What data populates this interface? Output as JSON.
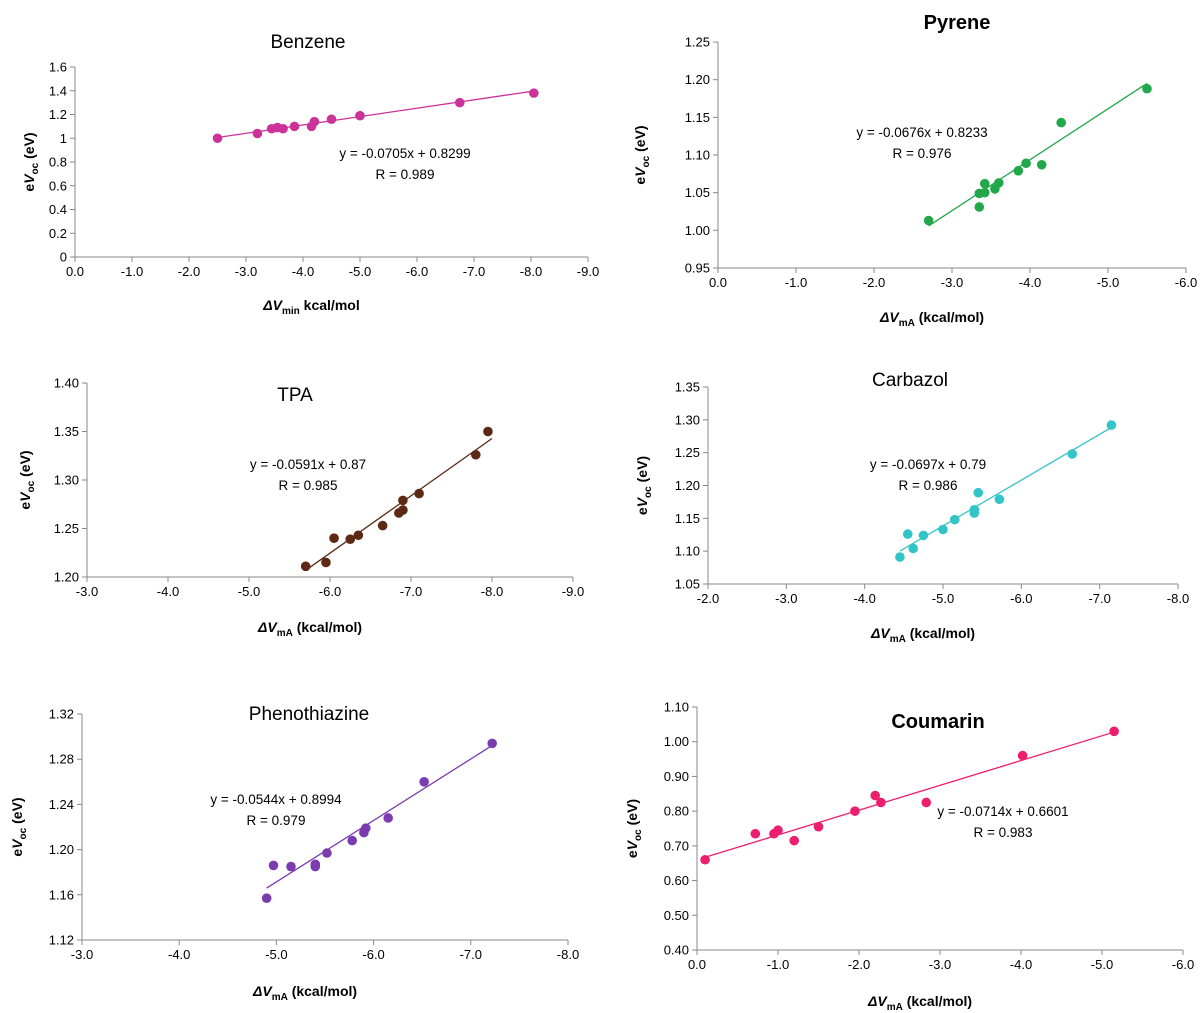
{
  "chart_data": [
    {
      "type": "scatter",
      "title": "Benzene",
      "xlabel": "ΔVmin kcal/mol",
      "ylabel": "eVoc (eV)",
      "xlim": [
        0,
        -9
      ],
      "ylim": [
        0,
        1.6
      ],
      "xticks": [
        "0.0",
        "-1.0",
        "-2.0",
        "-3.0",
        "-4.0",
        "-5.0",
        "-6.0",
        "-7.0",
        "-8.0",
        "-9.0"
      ],
      "yticks": [
        "0",
        "0.2",
        "0.4",
        "0.6",
        "0.8",
        "1",
        "1.2",
        "1.4",
        "1.6"
      ],
      "color": "#cc3399",
      "equation": "y = -0.0705x + 0.8299",
      "r_label": "R = 0.989",
      "fit": {
        "slope": -0.0705,
        "intercept": 0.8299,
        "x_from": -2.5,
        "x_to": -8.05
      },
      "x": [
        -2.5,
        -3.2,
        -3.45,
        -3.55,
        -3.65,
        -3.85,
        -4.15,
        -4.2,
        -4.5,
        -5.0,
        -6.75,
        -8.05
      ],
      "y": [
        1.0,
        1.04,
        1.08,
        1.09,
        1.08,
        1.1,
        1.1,
        1.14,
        1.16,
        1.19,
        1.3,
        1.38
      ]
    },
    {
      "type": "scatter",
      "title": "Pyrene",
      "title_bold": true,
      "xlabel": "ΔVmA (kcal/mol)",
      "ylabel": "eVoc (eV)",
      "xlim": [
        0,
        -6
      ],
      "ylim": [
        0.95,
        1.25
      ],
      "xticks": [
        "0.0",
        "-1.0",
        "-2.0",
        "-3.0",
        "-4.0",
        "-5.0",
        "-6.0"
      ],
      "yticks": [
        "0.95",
        "1.00",
        "1.05",
        "1.10",
        "1.15",
        "1.20",
        "1.25"
      ],
      "color": "#22a84a",
      "equation": "y = -0.0676x + 0.8233",
      "r_label": "R = 0.976",
      "fit": {
        "slope": -0.0676,
        "intercept": 0.8233,
        "x_from": -2.7,
        "x_to": -5.5
      },
      "x": [
        -2.7,
        -3.35,
        -3.35,
        -3.42,
        -3.42,
        -3.55,
        -3.6,
        -3.85,
        -3.95,
        -4.15,
        -4.4,
        -5.5
      ],
      "y": [
        1.013,
        1.031,
        1.049,
        1.05,
        1.062,
        1.055,
        1.063,
        1.079,
        1.089,
        1.087,
        1.143,
        1.188
      ]
    },
    {
      "type": "scatter",
      "title": "TPA",
      "xlabel": "ΔVmA (kcal/mol)",
      "ylabel": "eVoc (eV)",
      "xlim": [
        -3,
        -9
      ],
      "ylim": [
        1.2,
        1.4
      ],
      "xticks": [
        "-3.0",
        "-4.0",
        "-5.0",
        "-6.0",
        "-7.0",
        "-8.0",
        "-9.0"
      ],
      "yticks": [
        "1.20",
        "1.25",
        "1.30",
        "1.35",
        "1.40"
      ],
      "color": "#5c2a14",
      "equation": "y = -0.0591x + 0.87",
      "r_label": "R = 0.985",
      "fit": {
        "slope": -0.0591,
        "intercept": 0.87,
        "x_from": -5.7,
        "x_to": -8.0
      },
      "x": [
        -5.7,
        -5.95,
        -6.05,
        -6.25,
        -6.35,
        -6.65,
        -6.85,
        -6.9,
        -6.9,
        -7.1,
        -7.8,
        -7.95
      ],
      "y": [
        1.211,
        1.215,
        1.24,
        1.239,
        1.243,
        1.253,
        1.266,
        1.269,
        1.279,
        1.286,
        1.326,
        1.35
      ]
    },
    {
      "type": "scatter",
      "title": "Carbazol",
      "xlabel": "ΔVmA (kcal/mol)",
      "ylabel": "eVoc (eV)",
      "xlim": [
        -2,
        -8
      ],
      "ylim": [
        1.05,
        1.35
      ],
      "xticks": [
        "-2.0",
        "-3.0",
        "-4.0",
        "-5.0",
        "-6.0",
        "-7.0",
        "-8.0"
      ],
      "yticks": [
        "1.05",
        "1.10",
        "1.15",
        "1.20",
        "1.25",
        "1.30",
        "1.35"
      ],
      "color": "#33c4c8",
      "equation": "y = -0.0697x + 0.79",
      "r_label": "R = 0.986",
      "fit": {
        "slope": -0.0697,
        "intercept": 0.79,
        "x_from": -4.45,
        "x_to": -7.15
      },
      "x": [
        -4.45,
        -4.55,
        -4.62,
        -4.75,
        -5.0,
        -5.15,
        -5.4,
        -5.4,
        -5.45,
        -5.72,
        -6.65,
        -7.15
      ],
      "y": [
        1.091,
        1.126,
        1.104,
        1.124,
        1.133,
        1.148,
        1.158,
        1.163,
        1.189,
        1.179,
        1.248,
        1.292
      ]
    },
    {
      "type": "scatter",
      "title": "Phenothiazine",
      "xlabel": "ΔVmA (kcal/mol)",
      "ylabel": "eVoc (eV)",
      "xlim": [
        -3,
        -8
      ],
      "ylim": [
        1.12,
        1.32
      ],
      "xticks": [
        "-3.0",
        "-4.0",
        "-5.0",
        "-6.0",
        "-7.0",
        "-8.0"
      ],
      "yticks": [
        "1.12",
        "1.16",
        "1.20",
        "1.24",
        "1.28",
        "1.32"
      ],
      "color": "#7a3cae",
      "equation": "y = -0.0544x + 0.8994",
      "r_label": "R = 0.979",
      "fit": {
        "slope": -0.0544,
        "intercept": 0.8994,
        "x_from": -4.9,
        "x_to": -7.22
      },
      "x": [
        -4.9,
        -4.97,
        -5.15,
        -5.4,
        -5.4,
        -5.52,
        -5.78,
        -5.9,
        -5.92,
        -6.15,
        -6.52,
        -7.22
      ],
      "y": [
        1.157,
        1.186,
        1.185,
        1.187,
        1.185,
        1.197,
        1.208,
        1.215,
        1.219,
        1.228,
        1.26,
        1.294
      ]
    },
    {
      "type": "scatter",
      "title": "Coumarin",
      "title_bold": true,
      "xlabel": "ΔVmA (kcal/mol)",
      "ylabel": "eVoc (eV)",
      "xlim": [
        0,
        -6
      ],
      "ylim": [
        0.4,
        1.1
      ],
      "xticks": [
        "0.0",
        "-1.0",
        "-2.0",
        "-3.0",
        "-4.0",
        "-5.0",
        "-6.0"
      ],
      "yticks": [
        "0.40",
        "0.50",
        "0.60",
        "0.70",
        "0.80",
        "0.90",
        "1.00",
        "1.10"
      ],
      "color": "#ee1e6e",
      "equation": "y = -0.0714x + 0.6601",
      "r_label": "R = 0.983",
      "fit": {
        "slope": -0.0714,
        "intercept": 0.6601,
        "x_from": -0.1,
        "x_to": -5.15
      },
      "x": [
        -0.1,
        -0.72,
        -0.95,
        -1.0,
        -1.2,
        -1.5,
        -1.95,
        -2.2,
        -2.27,
        -2.83,
        -4.02,
        -5.15
      ],
      "y": [
        0.66,
        0.735,
        0.735,
        0.745,
        0.715,
        0.755,
        0.8,
        0.845,
        0.825,
        0.825,
        0.96,
        1.03
      ]
    }
  ]
}
